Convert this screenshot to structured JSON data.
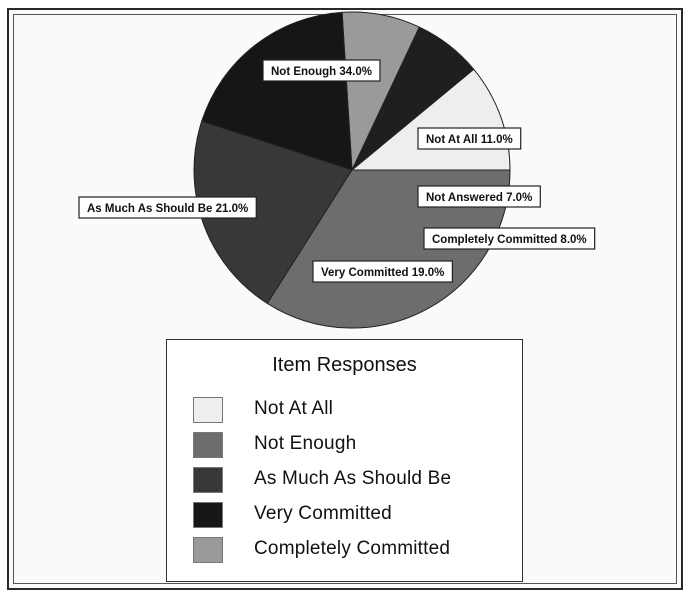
{
  "chart_data": {
    "type": "pie",
    "slices": [
      {
        "label": "Not At All",
        "value": 11.0,
        "display": "Not At All 11.0%",
        "color": "#eeeeee"
      },
      {
        "label": "Not Answered",
        "value": 7.0,
        "display": "Not Answered 7.0%",
        "color": "#1f1f1f"
      },
      {
        "label": "Completely Committed",
        "value": 8.0,
        "display": "Completely Committed 8.0%",
        "color": "#9a9a9a"
      },
      {
        "label": "Very Committed",
        "value": 19.0,
        "display": "Very Committed 19.0%",
        "color": "#161616"
      },
      {
        "label": "As Much As Should Be",
        "value": 21.0,
        "display": "As Much As Should Be 21.0%",
        "color": "#383838"
      },
      {
        "label": "Not Enough",
        "value": 34.0,
        "display": "Not Enough 34.0%",
        "color": "#6d6d6d"
      }
    ],
    "legend": {
      "title": "Item Responses",
      "placement": "bottom",
      "entries": [
        "Not At All",
        "Not Enough",
        "As Much As Should Be",
        "Very Committed",
        "Completely Committed"
      ]
    }
  }
}
